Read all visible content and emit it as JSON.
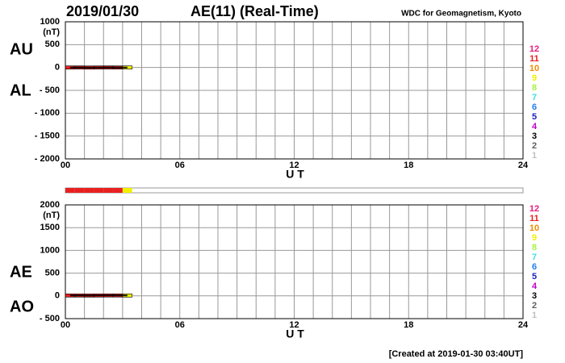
{
  "header": {
    "date": "2019/01/30",
    "title": "AE(11) (Real-Time)",
    "source": "WDC for Geomagnetism, Kyoto",
    "footer": "[Created at 2019-01-30 03:40UT]"
  },
  "station_count": {
    "values": [
      11,
      11,
      11,
      11,
      11,
      11,
      9
    ],
    "legend_counts": [
      12,
      11,
      10,
      9,
      8,
      7,
      6,
      5,
      4,
      3,
      2,
      1
    ],
    "legend_colors": [
      "#e8207c",
      "#e82020",
      "#f08c00",
      "#f0f000",
      "#a8f040",
      "#40e0e8",
      "#2080f0",
      "#2020c0",
      "#c000c8",
      "#000000",
      "#606060",
      "#c0c0c0"
    ]
  },
  "chart_data": [
    {
      "type": "line",
      "y_unit": "(nT)",
      "xlabel": "U T",
      "x": [
        0.25,
        0.75,
        1.25,
        1.75,
        2.25,
        2.75,
        3.25
      ],
      "series": [
        {
          "name": "AU",
          "color": "#000000",
          "values": [
            8,
            9,
            7,
            8,
            10,
            9,
            8
          ]
        },
        {
          "name": "AL",
          "color": "#000000",
          "values": [
            -9,
            -8,
            -10,
            -9,
            -8,
            -10,
            -9
          ]
        }
      ],
      "xlim": [
        0,
        24
      ],
      "xticks": [
        {
          "value": 0,
          "label": "00"
        },
        {
          "value": 6,
          "label": "06"
        },
        12,
        18,
        24
      ],
      "x_minor_ticks": [
        0,
        1,
        2,
        3,
        4,
        5,
        6,
        7,
        8,
        9,
        10,
        11,
        12,
        13,
        14,
        15,
        16,
        17,
        18,
        19,
        20,
        21,
        22,
        23,
        24
      ],
      "ylim": [
        -2000,
        1000
      ],
      "yticks": [
        1000,
        500,
        0,
        {
          "value": -500,
          "label": "- 500"
        },
        {
          "value": -1000,
          "label": "- 1000"
        },
        {
          "value": -1500,
          "label": "- 1500"
        },
        {
          "value": -2000,
          "label": "- 2000"
        }
      ],
      "grid": true
    },
    {
      "type": "line",
      "y_unit": "(nT)",
      "xlabel": "U T",
      "x": [
        0.25,
        0.75,
        1.25,
        1.75,
        2.25,
        2.75,
        3.25
      ],
      "series": [
        {
          "name": "AE",
          "color": "#000000",
          "values": [
            17,
            17,
            17,
            17,
            18,
            19,
            17
          ]
        },
        {
          "name": "AO",
          "color": "#000000",
          "values": [
            0,
            0,
            -2,
            0,
            1,
            0,
            0
          ]
        }
      ],
      "xlim": [
        0,
        24
      ],
      "xticks": [
        {
          "value": 0,
          "label": "00"
        },
        {
          "value": 6,
          "label": "06"
        },
        12,
        18,
        24
      ],
      "x_minor_ticks": [
        0,
        1,
        2,
        3,
        4,
        5,
        6,
        7,
        8,
        9,
        10,
        11,
        12,
        13,
        14,
        15,
        16,
        17,
        18,
        19,
        20,
        21,
        22,
        23,
        24
      ],
      "ylim": [
        -500,
        2000
      ],
      "yticks": [
        2000,
        1500,
        1000,
        500,
        0,
        {
          "value": -500,
          "label": "- 500"
        }
      ],
      "grid": true
    }
  ]
}
